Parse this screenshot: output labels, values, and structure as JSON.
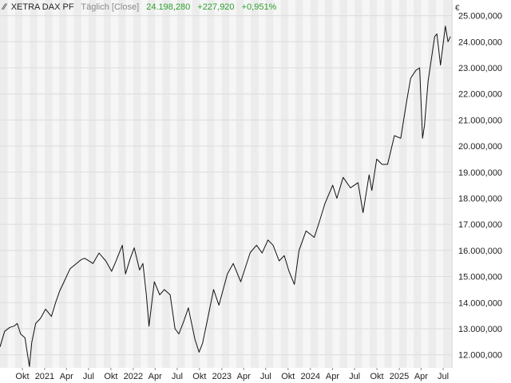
{
  "header": {
    "symbol": "XETRA DAX PF",
    "frequency": "Täglich [Close]",
    "last": "24.198,280",
    "change": "+227,920",
    "change_pct": "+0,951%",
    "currency": "€"
  },
  "colors": {
    "line": "#111111",
    "band_dark": "#ececec",
    "band_light": "#f6f6f6",
    "grid": "#ffffff",
    "positive": "#2e9e2e"
  },
  "chart_data": {
    "type": "line",
    "title": "",
    "xlabel": "",
    "ylabel": "",
    "ylim": [
      11500,
      25600
    ],
    "xlim": [
      "2020-07-01",
      "2025-08-06"
    ],
    "grid": true,
    "y_ticks": [
      12000,
      13000,
      14000,
      15000,
      16000,
      17000,
      18000,
      19000,
      20000,
      21000,
      22000,
      23000,
      24000,
      25000
    ],
    "y_tick_labels": [
      "12.000,000",
      "13.000,000",
      "14.000,000",
      "15.000,000",
      "16.000,000",
      "17.000,000",
      "18.000,000",
      "19.000,000",
      "20.000,000",
      "21.000,000",
      "22.000,000",
      "23.000,000",
      "24.000,000",
      "25.000,000"
    ],
    "x_ticks": [
      {
        "date": "2020-10-01",
        "label": "Okt"
      },
      {
        "date": "2021-01-01",
        "label": "2021"
      },
      {
        "date": "2021-04-01",
        "label": "Apr"
      },
      {
        "date": "2021-07-01",
        "label": "Jul"
      },
      {
        "date": "2021-10-01",
        "label": "Okt"
      },
      {
        "date": "2022-01-01",
        "label": "2022"
      },
      {
        "date": "2022-04-01",
        "label": "Apr"
      },
      {
        "date": "2022-07-01",
        "label": "Jul"
      },
      {
        "date": "2022-10-01",
        "label": "Okt"
      },
      {
        "date": "2023-01-01",
        "label": "2023"
      },
      {
        "date": "2023-04-01",
        "label": "Apr"
      },
      {
        "date": "2023-07-01",
        "label": "Jul"
      },
      {
        "date": "2023-10-01",
        "label": "Okt"
      },
      {
        "date": "2024-01-01",
        "label": "2024"
      },
      {
        "date": "2024-04-01",
        "label": "Apr"
      },
      {
        "date": "2024-07-01",
        "label": "Jul"
      },
      {
        "date": "2024-10-01",
        "label": "Okt"
      },
      {
        "date": "2025-01-01",
        "label": "2025"
      },
      {
        "date": "2025-04-01",
        "label": "Apr"
      },
      {
        "date": "2025-07-01",
        "label": "Jul"
      }
    ],
    "series": [
      {
        "x": [
          "2020-07-01",
          "2020-07-20",
          "2020-08-10",
          "2020-08-28",
          "2020-09-10",
          "2020-09-24",
          "2020-10-12",
          "2020-10-30",
          "2020-11-09",
          "2020-11-25",
          "2020-12-15",
          "2021-01-05",
          "2021-01-29",
          "2021-02-15",
          "2021-03-04",
          "2021-03-17",
          "2021-04-16",
          "2021-05-12",
          "2021-06-01",
          "2021-06-15",
          "2021-07-19",
          "2021-08-13",
          "2021-09-10",
          "2021-10-04",
          "2021-10-20",
          "2021-11-17",
          "2021-11-30",
          "2021-12-20",
          "2022-01-05",
          "2022-01-27",
          "2022-02-10",
          "2022-02-24",
          "2022-03-07",
          "2022-03-29",
          "2022-04-20",
          "2022-05-09",
          "2022-06-02",
          "2022-06-22",
          "2022-07-08",
          "2022-07-28",
          "2022-08-16",
          "2022-09-12",
          "2022-09-29",
          "2022-10-14",
          "2022-11-04",
          "2022-11-28",
          "2022-12-20",
          "2023-01-24",
          "2023-02-17",
          "2023-03-20",
          "2023-04-28",
          "2023-05-24",
          "2023-06-16",
          "2023-07-10",
          "2023-07-31",
          "2023-08-25",
          "2023-09-15",
          "2023-10-05",
          "2023-10-27",
          "2023-11-15",
          "2023-12-14",
          "2024-01-17",
          "2024-02-07",
          "2024-03-01",
          "2024-04-02",
          "2024-04-19",
          "2024-05-15",
          "2024-06-14",
          "2024-07-15",
          "2024-08-05",
          "2024-08-30",
          "2024-09-10",
          "2024-09-30",
          "2024-10-22",
          "2024-11-14",
          "2024-12-12",
          "2025-01-07",
          "2025-01-31",
          "2025-02-17",
          "2025-03-10",
          "2025-03-26",
          "2025-04-07",
          "2025-04-15",
          "2025-04-30",
          "2025-05-27",
          "2025-06-05",
          "2025-06-20",
          "2025-07-10",
          "2025-07-21",
          "2025-07-31"
        ],
        "values": [
          12300,
          12900,
          13050,
          13100,
          13200,
          12800,
          12650,
          11550,
          12480,
          13200,
          13400,
          13750,
          13470,
          14000,
          14450,
          14700,
          15300,
          15500,
          15650,
          15700,
          15500,
          15900,
          15600,
          15200,
          15550,
          16200,
          15100,
          15700,
          16100,
          15250,
          15500,
          14300,
          13100,
          14800,
          14300,
          14500,
          14300,
          13000,
          12800,
          13280,
          13800,
          12600,
          12100,
          12450,
          13400,
          14500,
          13900,
          15100,
          15500,
          14800,
          15920,
          16200,
          15900,
          16400,
          16200,
          15600,
          15800,
          15200,
          14700,
          16000,
          16750,
          16500,
          17100,
          17800,
          18500,
          18000,
          18800,
          18400,
          18600,
          17450,
          18900,
          18300,
          19500,
          19300,
          19300,
          20400,
          20300,
          21700,
          22600,
          22900,
          23000,
          20300,
          20800,
          22500,
          24200,
          24300,
          23100,
          24600,
          24000,
          24198
        ]
      }
    ]
  }
}
